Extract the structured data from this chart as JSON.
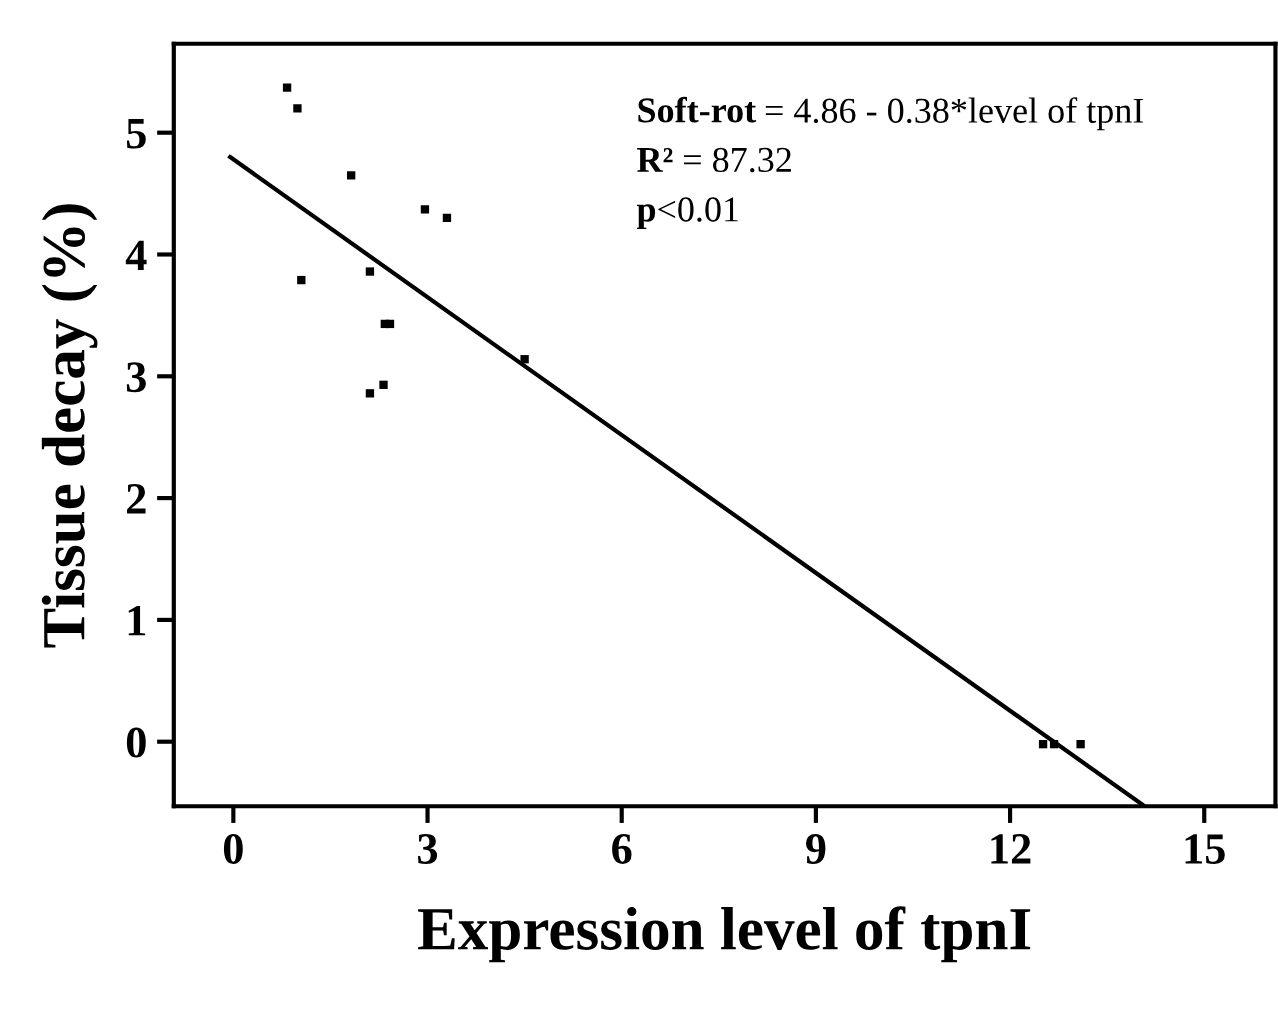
{
  "chart_data": {
    "type": "scatter",
    "xlabel": "Expression level of tpnI",
    "ylabel": "Tissue decay (%)",
    "x": [
      0.83,
      0.99,
      1.05,
      1.82,
      2.11,
      2.11,
      2.32,
      2.34,
      2.42,
      2.96,
      3.3,
      4.5,
      12.51,
      12.68,
      13.09
    ],
    "series": [
      {
        "color": "#000000",
        "marker": "square",
        "values": [
          5.37,
          5.2,
          3.79,
          4.65,
          3.86,
          2.86,
          2.93,
          3.43,
          3.43,
          4.37,
          4.3,
          3.14,
          -0.02,
          -0.02,
          -0.02
        ]
      },
      {
        "type": "line",
        "color": "#000000",
        "x": [
          -0.05,
          14.08
        ],
        "values": [
          4.8,
          -0.53
        ],
        "line_style": "solid",
        "marker": "none"
      }
    ],
    "annotations": [
      "Soft-rot = 4.86 - 0.38*level of tpnI",
      "R² = 87.32",
      "p<0.01"
    ],
    "xlim": [
      -0.92,
      16.1
    ],
    "ylim": [
      -0.53,
      5.73
    ],
    "xticks": [
      0,
      3,
      6,
      9,
      12,
      15
    ],
    "yticks": [
      0,
      1,
      2,
      3,
      4,
      5
    ],
    "grid": false,
    "legend": false
  }
}
